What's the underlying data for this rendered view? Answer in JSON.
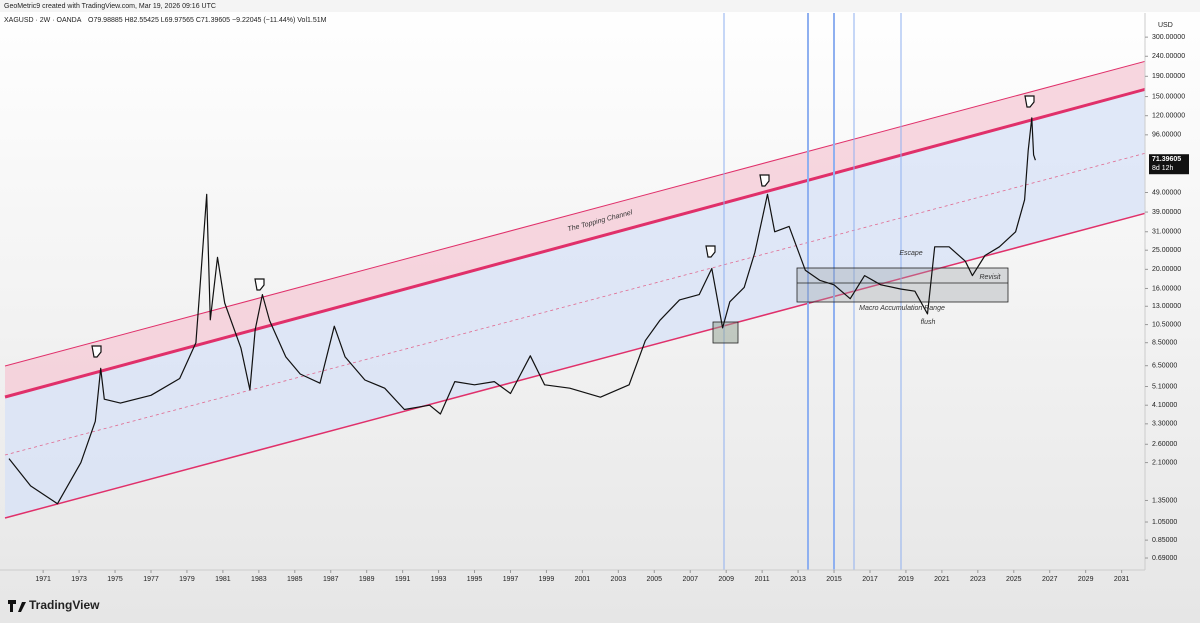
{
  "header": {
    "credit": "GeoMetric9 created with TradingView.com, Mar 19, 2026 09:16 UTC",
    "symbol": "XAGUSD · 2W · OANDA",
    "ohlc": "O79.98885 H82.55425 L69.97565 C71.39605 −9.22045 (−11.44%) Vol1.51M"
  },
  "chart_data": {
    "type": "line",
    "yscale": "log",
    "grid": false,
    "color": "#111111",
    "currency": "USD",
    "last_price": 71.39605,
    "countdown": "8d 12h",
    "annotations": [
      "The Topping Channel",
      "Escape",
      "Revisit",
      "Macro Accumulation Range",
      "flush"
    ],
    "x": [
      1969.1,
      1970.3,
      1971.8,
      1973.1,
      1973.9,
      1974.2,
      1974.4,
      1975.3,
      1977.0,
      1978.6,
      1979.5,
      1979.7,
      1980.1,
      1980.3,
      1980.7,
      1981.1,
      1982.0,
      1982.5,
      1982.8,
      1983.2,
      1983.6,
      1984.5,
      1985.3,
      1986.4,
      1987.2,
      1987.8,
      1988.9,
      1990.0,
      1991.1,
      1992.5,
      1993.1,
      1993.9,
      1995.0,
      1996.1,
      1997.0,
      1998.1,
      1998.9,
      2000.3,
      2002.0,
      2003.6,
      2004.5,
      2005.3,
      2006.4,
      2007.5,
      2008.2,
      2008.8,
      2009.2,
      2010.0,
      2010.6,
      2011.3,
      2011.7,
      2012.5,
      2013.4,
      2014.2,
      2015.0,
      2015.9,
      2016.7,
      2017.6,
      2018.7,
      2019.5,
      2020.2,
      2020.6,
      2021.4,
      2022.3,
      2022.7,
      2023.4,
      2024.2,
      2025.1,
      2025.6,
      2025.8,
      2026.0,
      2026.1,
      2026.2
    ],
    "values": [
      2.2,
      1.6,
      1.3,
      2.1,
      3.4,
      6.3,
      4.4,
      4.2,
      4.6,
      5.6,
      8.5,
      15,
      48,
      11.1,
      23,
      13.5,
      8,
      4.9,
      9.9,
      14.9,
      11,
      7.2,
      5.9,
      5.3,
      10.3,
      7.2,
      5.5,
      5,
      3.9,
      4.1,
      3.7,
      5.4,
      5.2,
      5.4,
      4.7,
      7.3,
      5.2,
      5,
      4.5,
      5.2,
      8.7,
      11,
      14,
      14.9,
      20.2,
      10.1,
      13.7,
      16.2,
      24.4,
      48,
      31,
      33,
      19.8,
      17.6,
      16.7,
      14.2,
      18.6,
      16.7,
      15.9,
      15.5,
      11.9,
      26,
      26,
      22,
      18.6,
      23.5,
      26,
      31,
      45,
      80,
      117,
      76,
      71.4
    ],
    "xlim": [
      1968.6,
      2032.3
    ],
    "ylim": [
      0.6,
      375
    ],
    "xticks": [
      1971,
      1973,
      1975,
      1977,
      1979,
      1981,
      1983,
      1985,
      1987,
      1989,
      1991,
      1993,
      1995,
      1997,
      1999,
      2001,
      2003,
      2005,
      2007,
      2009,
      2011,
      2013,
      2015,
      2017,
      2019,
      2021,
      2023,
      2025,
      2027,
      2029,
      2031
    ],
    "yticks": [
      {
        "value": 300,
        "label": "300.00000"
      },
      {
        "value": 240,
        "label": "240.00000"
      },
      {
        "value": 190,
        "label": "190.00000"
      },
      {
        "value": 150,
        "label": "150.00000"
      },
      {
        "value": 120,
        "label": "120.00000"
      },
      {
        "value": 96,
        "label": "96.00000"
      },
      {
        "value": 49,
        "label": "49.00000"
      },
      {
        "value": 39,
        "label": "39.00000"
      },
      {
        "value": 31,
        "label": "31.00000"
      },
      {
        "value": 25,
        "label": "25.00000"
      },
      {
        "value": 20,
        "label": "20.00000"
      },
      {
        "value": 16,
        "label": "16.00000"
      },
      {
        "value": 13,
        "label": "13.00000"
      },
      {
        "value": 10.5,
        "label": "10.50000"
      },
      {
        "value": 8.5,
        "label": "8.50000"
      },
      {
        "value": 6.5,
        "label": "6.50000"
      },
      {
        "value": 5.1,
        "label": "5.10000"
      },
      {
        "value": 4.1,
        "label": "4.10000"
      },
      {
        "value": 3.3,
        "label": "3.30000"
      },
      {
        "value": 2.6,
        "label": "2.60000"
      },
      {
        "value": 2.1,
        "label": "2.10000"
      },
      {
        "value": 1.35,
        "label": "1.35000"
      },
      {
        "value": 1.05,
        "label": "1.05000"
      },
      {
        "value": 0.85,
        "label": "0.85000"
      },
      {
        "value": 0.69,
        "label": "0.69000"
      }
    ]
  },
  "footer": {
    "brand": "TradingView"
  }
}
